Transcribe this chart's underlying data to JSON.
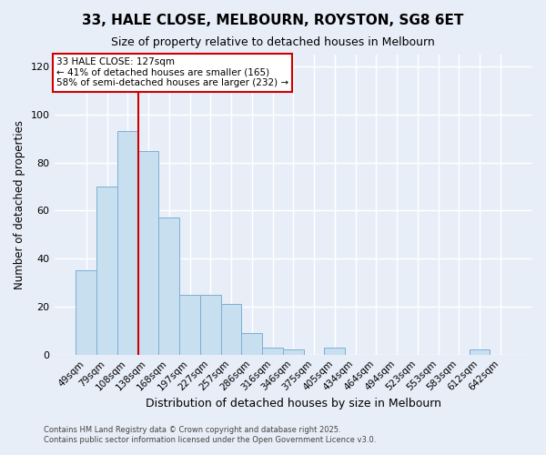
{
  "title": "33, HALE CLOSE, MELBOURN, ROYSTON, SG8 6ET",
  "subtitle": "Size of property relative to detached houses in Melbourn",
  "xlabel": "Distribution of detached houses by size in Melbourn",
  "ylabel": "Number of detached properties",
  "bar_labels": [
    "49sqm",
    "79sqm",
    "108sqm",
    "138sqm",
    "168sqm",
    "197sqm",
    "227sqm",
    "257sqm",
    "286sqm",
    "316sqm",
    "346sqm",
    "375sqm",
    "405sqm",
    "434sqm",
    "464sqm",
    "494sqm",
    "523sqm",
    "553sqm",
    "583sqm",
    "612sqm",
    "642sqm"
  ],
  "bar_values": [
    35,
    70,
    93,
    85,
    57,
    25,
    25,
    21,
    9,
    3,
    2,
    0,
    3,
    0,
    0,
    0,
    0,
    0,
    0,
    2,
    0
  ],
  "bar_color": "#c8dff0",
  "bar_edge_color": "#7bafd4",
  "ylim": [
    0,
    125
  ],
  "yticks": [
    0,
    20,
    40,
    60,
    80,
    100,
    120
  ],
  "vline_color": "#cc0000",
  "annotation_title": "33 HALE CLOSE: 127sqm",
  "annotation_line1": "← 41% of detached houses are smaller (165)",
  "annotation_line2": "58% of semi-detached houses are larger (232) →",
  "annotation_box_color": "#cc0000",
  "footer1": "Contains HM Land Registry data © Crown copyright and database right 2025.",
  "footer2": "Contains public sector information licensed under the Open Government Licence v3.0.",
  "background_color": "#e8eef8",
  "grid_color": "#ffffff"
}
